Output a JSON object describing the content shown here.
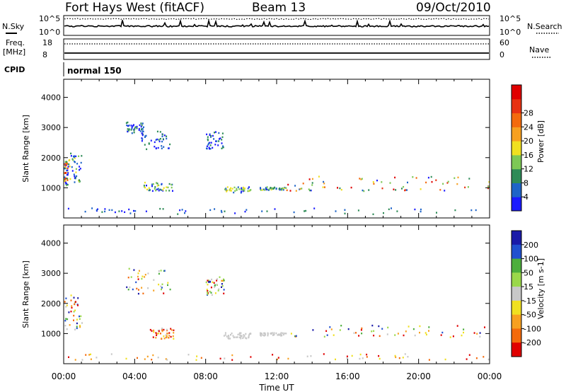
{
  "header": {
    "title": "Fort Hays West (fitACF)",
    "beam": "Beam 13",
    "date": "09/Oct/2010"
  },
  "sky_panel": {
    "left_label": "N.Sky",
    "right_label": "N.Search",
    "ticks": [
      "10^5",
      "10^0"
    ]
  },
  "freq_panel": {
    "left_label_line1": "Freq.",
    "left_label_line2": "[MHz]",
    "left_ticks": [
      "18",
      "8"
    ],
    "right_ticks": [
      "60",
      "0"
    ],
    "right_label": "Nave"
  },
  "cpid": {
    "label": "CPID",
    "value": "normal 150"
  },
  "x_axis": {
    "label": "Time UT",
    "ticks": [
      "00:00",
      "04:00",
      "08:00",
      "12:00",
      "16:00",
      "20:00",
      "00:00"
    ]
  },
  "chart_data": [
    {
      "type": "heatmap",
      "quantity": "Power",
      "ylabel": "Slant Range [km]",
      "xlabel": "Time UT",
      "x_range_hours": [
        0,
        24
      ],
      "ylim": [
        0,
        4600
      ],
      "yticks": [
        1000,
        2000,
        3000,
        4000
      ],
      "colorbar": {
        "label": "Power [dB]",
        "ticks": [
          "4",
          "8",
          "12",
          "16",
          "20",
          "24",
          "28"
        ],
        "colors": [
          "#1a1aff",
          "#1e64c8",
          "#2e8b57",
          "#7dc855",
          "#f0e020",
          "#f7a020",
          "#f46a0c",
          "#e83212",
          "#e00000"
        ]
      },
      "echo_regions": [
        {
          "t": [
            0.0,
            0.2
          ],
          "range": [
            1100,
            1900
          ],
          "level": "high"
        },
        {
          "t": [
            0.2,
            1.0
          ],
          "range": [
            1200,
            2200
          ],
          "level": "mid"
        },
        {
          "t": [
            3.5,
            4.5
          ],
          "range": [
            2800,
            3200
          ],
          "level": "low"
        },
        {
          "t": [
            4.3,
            6.0
          ],
          "range": [
            2300,
            2900
          ],
          "level": "low"
        },
        {
          "t": [
            4.5,
            6.1
          ],
          "range": [
            900,
            1200
          ],
          "level": "mid"
        },
        {
          "t": [
            8.0,
            9.0
          ],
          "range": [
            2300,
            2900
          ],
          "level": "low"
        },
        {
          "t": [
            9.0,
            10.5
          ],
          "range": [
            850,
            1050
          ],
          "level": "mid"
        },
        {
          "t": [
            11.0,
            12.5
          ],
          "range": [
            950,
            1050
          ],
          "level": "mid"
        },
        {
          "t": [
            12.5,
            24.0
          ],
          "range": [
            900,
            1400
          ],
          "level": "high"
        },
        {
          "t": [
            0.0,
            24.0
          ],
          "range": [
            150,
            350
          ],
          "level": "low"
        }
      ]
    },
    {
      "type": "heatmap",
      "quantity": "Velocity",
      "ylabel": "Slant Range [km]",
      "xlabel": "Time UT",
      "x_range_hours": [
        0,
        24
      ],
      "ylim": [
        0,
        4600
      ],
      "yticks": [
        1000,
        2000,
        3000,
        4000
      ],
      "colorbar": {
        "label": "Velocity [m s-1]",
        "ticks": [
          "200",
          "100",
          "50",
          "15",
          "-15",
          "-50",
          "-100",
          "-200"
        ],
        "colors": [
          "#1a1aa8",
          "#2050d0",
          "#4cae3c",
          "#9ad84a",
          "#c8c8c8",
          "#f0e020",
          "#f7a020",
          "#f46a0c",
          "#e00000"
        ]
      },
      "echo_regions": [
        {
          "t": [
            0.0,
            1.0
          ],
          "range": [
            1100,
            2300
          ],
          "level": "mixed"
        },
        {
          "t": [
            3.5,
            6.0
          ],
          "range": [
            2300,
            3200
          ],
          "level": "mixed"
        },
        {
          "t": [
            4.8,
            6.2
          ],
          "range": [
            850,
            1200
          ],
          "level": "negative"
        },
        {
          "t": [
            8.0,
            9.0
          ],
          "range": [
            2300,
            2900
          ],
          "level": "mixed"
        },
        {
          "t": [
            9.0,
            10.5
          ],
          "range": [
            850,
            1050
          ],
          "level": "ground"
        },
        {
          "t": [
            11.0,
            12.5
          ],
          "range": [
            950,
            1050
          ],
          "level": "ground"
        },
        {
          "t": [
            12.5,
            24.0
          ],
          "range": [
            900,
            1300
          ],
          "level": "mixed"
        },
        {
          "t": [
            0.0,
            24.0
          ],
          "range": [
            150,
            350
          ],
          "level": "negative"
        }
      ]
    }
  ]
}
